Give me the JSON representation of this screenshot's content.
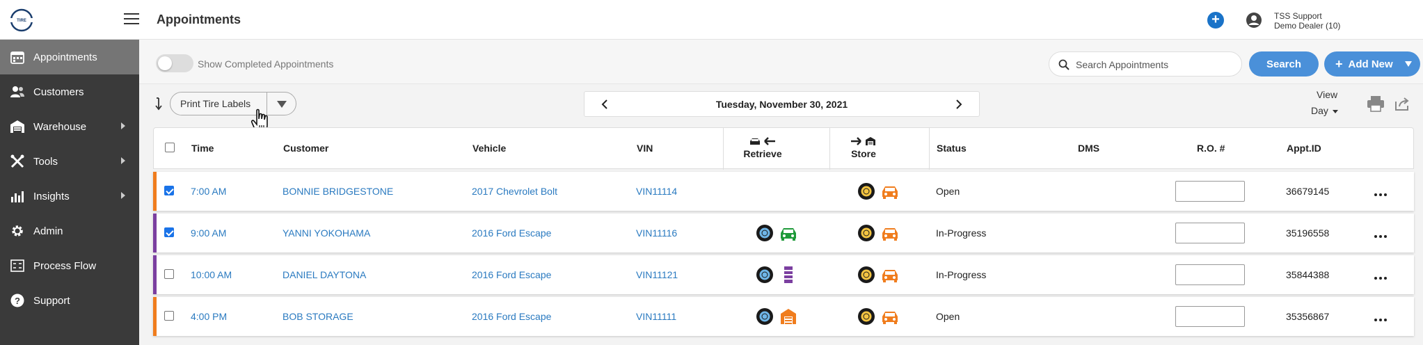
{
  "header": {
    "title": "Appointments",
    "user": {
      "name": "TSS Support",
      "dealer": "Demo Dealer (10)"
    }
  },
  "sidebar": {
    "items": [
      {
        "label": "Appointments",
        "icon": "calendar-icon",
        "active": true,
        "has_submenu": false
      },
      {
        "label": "Customers",
        "icon": "users-icon",
        "active": false,
        "has_submenu": false
      },
      {
        "label": "Warehouse",
        "icon": "warehouse-icon",
        "active": false,
        "has_submenu": true
      },
      {
        "label": "Tools",
        "icon": "tools-icon",
        "active": false,
        "has_submenu": true
      },
      {
        "label": "Insights",
        "icon": "insights-icon",
        "active": false,
        "has_submenu": true
      },
      {
        "label": "Admin",
        "icon": "gear-icon",
        "active": false,
        "has_submenu": false
      },
      {
        "label": "Process Flow",
        "icon": "process-flow-icon",
        "active": false,
        "has_submenu": false
      },
      {
        "label": "Support",
        "icon": "help-icon",
        "active": false,
        "has_submenu": false
      }
    ]
  },
  "filters": {
    "show_completed_label": "Show Completed Appointments",
    "show_completed": false,
    "search_placeholder": "Search Appointments",
    "search_value": "",
    "search_button": "Search",
    "add_new_button": "Add New"
  },
  "toolbar": {
    "print_labels_button": "Print Tire Labels",
    "date": "Tuesday, November 30, 2021",
    "view_label": "View",
    "view_value": "Day"
  },
  "table": {
    "columns": {
      "time": "Time",
      "customer": "Customer",
      "vehicle": "Vehicle",
      "vin": "VIN",
      "retrieve": "Retrieve",
      "store": "Store",
      "status": "Status",
      "dms": "DMS",
      "ro": "R.O. #",
      "appt_id": "Appt.ID"
    },
    "rows": [
      {
        "checked": true,
        "bar_color": "#f07d1e",
        "time": "7:00 AM",
        "customer": "BONNIE BRIDGESTONE",
        "vehicle": "2017 Chevrolet Bolt",
        "vin": "VIN11114",
        "retrieve_icons": [],
        "store_icons": [
          "tire-icon",
          "car-icon"
        ],
        "status": "Open",
        "dms": "",
        "ro": "",
        "appt_id": "36679145"
      },
      {
        "checked": true,
        "bar_color": "#7b3fa0",
        "time": "9:00 AM",
        "customer": "YANNI YOKOHAMA",
        "vehicle": "2016 Ford Escape",
        "vin": "VIN11116",
        "retrieve_icons": [
          "tire-icon",
          "car-icon"
        ],
        "store_icons": [
          "tire-icon",
          "car-icon"
        ],
        "status": "In-Progress",
        "dms": "",
        "ro": "",
        "appt_id": "35196558"
      },
      {
        "checked": false,
        "bar_color": "#7b3fa0",
        "time": "10:00 AM",
        "customer": "DANIEL DAYTONA",
        "vehicle": "2016 Ford Escape",
        "vin": "VIN11121",
        "retrieve_icons": [
          "tire-icon",
          "rack-icon"
        ],
        "store_icons": [
          "tire-icon",
          "car-icon"
        ],
        "status": "In-Progress",
        "dms": "",
        "ro": "",
        "appt_id": "35844388"
      },
      {
        "checked": false,
        "bar_color": "#f07d1e",
        "time": "4:00 PM",
        "customer": "BOB STORAGE",
        "vehicle": "2016 Ford Escape",
        "vin": "VIN11111",
        "retrieve_icons": [
          "tire-icon",
          "warehouse-icon"
        ],
        "store_icons": [
          "tire-icon",
          "car-icon"
        ],
        "status": "Open",
        "dms": "",
        "ro": "",
        "appt_id": "35356867"
      }
    ]
  },
  "colors": {
    "accent": "#4a90d9",
    "sidebar_bg": "#3a3a3a",
    "sidebar_active": "#757575",
    "link": "#2a7ac0",
    "orange": "#f07d1e",
    "purple": "#7b3fa0",
    "green": "#1f9a3a"
  }
}
